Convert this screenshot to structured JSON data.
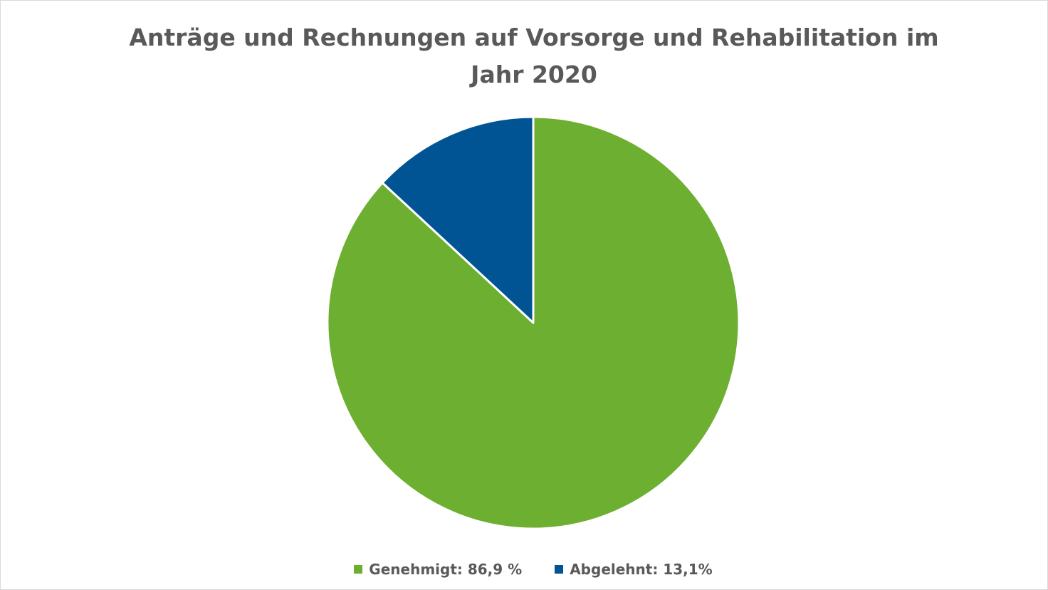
{
  "chart_data": {
    "type": "pie",
    "title": "Anträge und Rechnungen auf Vorsorge und Rehabilitation im Jahr 2020",
    "slices": [
      {
        "label": "Genehmigt: 86,9 %",
        "value": 86.9,
        "color": "#6DAF30"
      },
      {
        "label": "Abgelehnt: 13,1%",
        "value": 13.1,
        "color": "#005493"
      }
    ],
    "legend_position": "bottom"
  }
}
